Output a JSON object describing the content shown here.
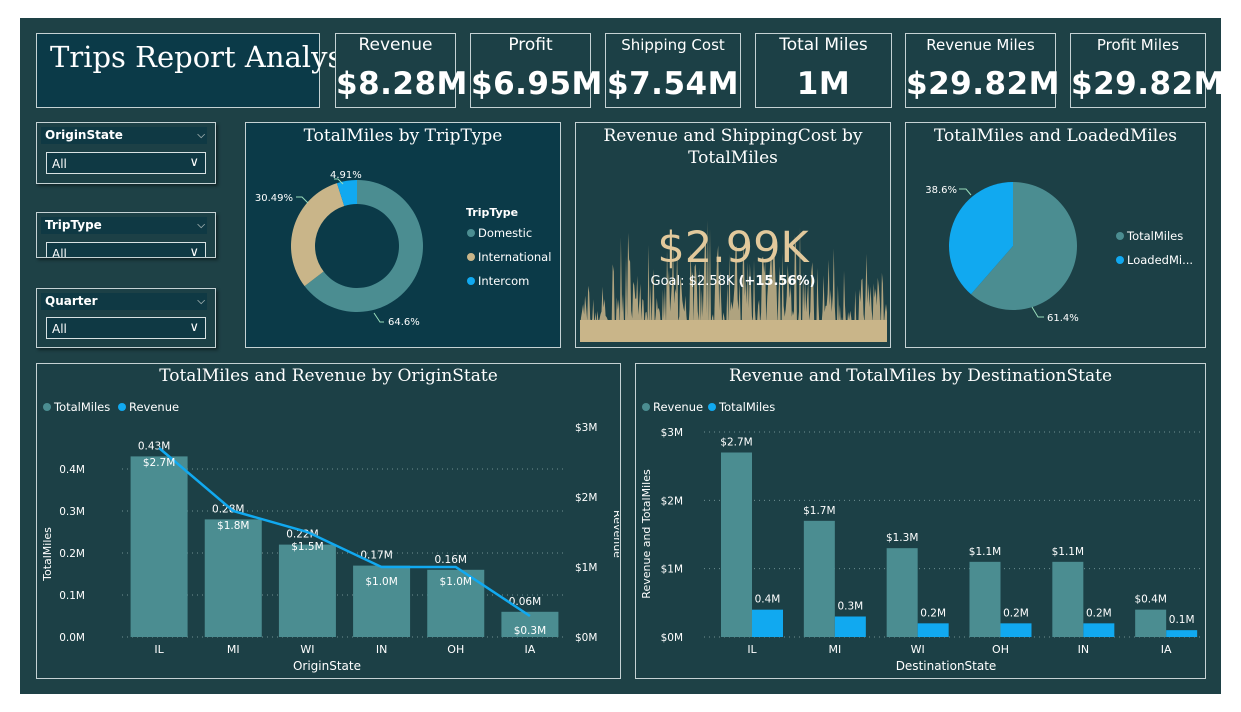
{
  "title": "Trips Report Analysis",
  "kpis": [
    {
      "label": "Revenue",
      "value": "$8.28M"
    },
    {
      "label": "Profit",
      "value": "$6.95M"
    },
    {
      "label": "Shipping Cost",
      "value": "$7.54M"
    },
    {
      "label": "Total Miles",
      "value": "1M"
    },
    {
      "label": "Revenue Miles",
      "value": "$29.82M"
    },
    {
      "label": "Profit Miles",
      "value": "$29.82M"
    }
  ],
  "slicers": [
    {
      "label": "OriginState",
      "value": "All"
    },
    {
      "label": "TripType",
      "value": "All"
    },
    {
      "label": "Quarter",
      "value": "All"
    }
  ],
  "colors": {
    "background": "#1e4146",
    "teal": "#4b8d91",
    "blue": "#11a9f0",
    "tan": "#c9b589"
  },
  "chart_data": [
    {
      "type": "pie",
      "variant": "donut",
      "title": "TotalMiles by TripType",
      "legend_title": "TripType",
      "categories": [
        "Domestic",
        "International",
        "Intercom"
      ],
      "values": [
        64.6,
        30.49,
        4.91
      ],
      "labels": [
        "64.6%",
        "30.49%",
        "4.91%"
      ],
      "legend_position": "right"
    },
    {
      "type": "area",
      "title": "Revenue and ShippingCost by TotalMiles",
      "kpi_value": "$2.99K",
      "goal_text": "Goal: $2.58K",
      "goal_delta": "(+15.56%)"
    },
    {
      "type": "pie",
      "title": "TotalMiles and LoadedMiles",
      "categories": [
        "TotalMiles",
        "LoadedMi..."
      ],
      "values": [
        61.4,
        38.6
      ],
      "labels": [
        "61.4%",
        "38.6%"
      ],
      "legend_position": "right"
    },
    {
      "type": "bar",
      "title": "TotalMiles and Revenue by OriginState",
      "xlabel": "OriginState",
      "ylabel": "TotalMiles",
      "y2label": "Revenue",
      "categories": [
        "IL",
        "MI",
        "WI",
        "IN",
        "OH",
        "IA"
      ],
      "series": [
        {
          "name": "TotalMiles",
          "kind": "bar",
          "values": [
            0.43,
            0.28,
            0.22,
            0.17,
            0.16,
            0.06
          ],
          "labels": [
            "0.43M",
            "0.28M",
            "0.22M",
            "0.17M",
            "0.16M",
            "0.06M"
          ]
        },
        {
          "name": "Revenue",
          "kind": "line",
          "values": [
            2.7,
            1.8,
            1.5,
            1.0,
            1.0,
            0.3
          ],
          "labels": [
            "$2.7M",
            "$1.8M",
            "$1.5M",
            "$1.0M",
            "$1.0M",
            "$0.3M"
          ]
        }
      ],
      "ylim": [
        0,
        0.45
      ],
      "yticks": [
        "0.0M",
        "0.1M",
        "0.2M",
        "0.3M",
        "0.4M"
      ],
      "y2lim": [
        0,
        3
      ],
      "y2ticks": [
        "$0M",
        "$1M",
        "$2M",
        "$3M"
      ],
      "legend_position": "top-left"
    },
    {
      "type": "bar",
      "title": "Revenue and TotalMiles by DestinationState",
      "xlabel": "DestinationState",
      "ylabel": "Revenue and TotalMiles",
      "categories": [
        "IL",
        "MI",
        "WI",
        "OH",
        "IN",
        "IA"
      ],
      "series": [
        {
          "name": "Revenue",
          "values": [
            2.7,
            1.7,
            1.3,
            1.1,
            1.1,
            0.4
          ],
          "labels": [
            "$2.7M",
            "$1.7M",
            "$1.3M",
            "$1.1M",
            "$1.1M",
            "$0.4M"
          ]
        },
        {
          "name": "TotalMiles",
          "values": [
            0.4,
            0.3,
            0.2,
            0.2,
            0.2,
            0.1
          ],
          "labels": [
            "0.4M",
            "0.3M",
            "0.2M",
            "0.2M",
            "0.2M",
            "0.1M"
          ]
        }
      ],
      "ylim": [
        0,
        3
      ],
      "yticks": [
        "$0M",
        "$1M",
        "$2M",
        "$3M"
      ],
      "legend_position": "top-left"
    }
  ]
}
